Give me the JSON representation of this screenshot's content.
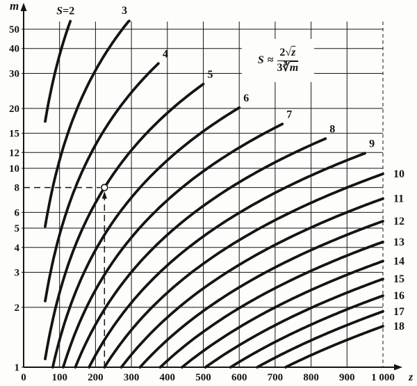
{
  "figure": {
    "background": "#fdfdfb",
    "ink": "#141414"
  },
  "chart_data": {
    "type": "line",
    "title": "",
    "grid": true,
    "x_axis": {
      "label": "z",
      "min": 0,
      "max": 1000,
      "scale": "linear",
      "ticks": [
        {
          "z": 0,
          "label": "0"
        },
        {
          "z": 100,
          "label": "100"
        },
        {
          "z": 200,
          "label": "200"
        },
        {
          "z": 300,
          "label": "300"
        },
        {
          "z": 400,
          "label": "400"
        },
        {
          "z": 500,
          "label": "500"
        },
        {
          "z": 600,
          "label": "600"
        },
        {
          "z": 700,
          "label": "700"
        },
        {
          "z": 800,
          "label": "800"
        },
        {
          "z": 900,
          "label": "900"
        },
        {
          "z": 1000,
          "label": "1 000"
        }
      ]
    },
    "y_axis": {
      "label": "m",
      "min": 1,
      "max": 55,
      "scale": "log",
      "ticks": [
        {
          "m": 50,
          "label": "50"
        },
        {
          "m": 40,
          "label": "40"
        },
        {
          "m": 30,
          "label": "30"
        },
        {
          "m": 20,
          "label": "20"
        },
        {
          "m": 15,
          "label": "15"
        },
        {
          "m": 12,
          "label": "12"
        },
        {
          "m": 10,
          "label": "10"
        },
        {
          "m": 8,
          "label": "8"
        },
        {
          "m": 6,
          "label": "6"
        },
        {
          "m": 5,
          "label": "5"
        },
        {
          "m": 4,
          "label": "4"
        },
        {
          "m": 3,
          "label": "3"
        },
        {
          "m": 2,
          "label": "2"
        },
        {
          "m": 1,
          "label": "1"
        }
      ]
    },
    "formula": {
      "lhs": "S",
      "relation": "≈",
      "numerator_coefficient": "2",
      "numerator_radical": "√",
      "numerator_radicand": "z",
      "denominator_coefficient": "3",
      "denominator_radical": "∛",
      "denominator_radicand": "m"
    },
    "model": "m = 8·z^1.5 / (27·S^3), i.e. S ≈ 2√z / (3·∛m)",
    "series": [
      {
        "s": 2,
        "label": "S=2",
        "z_start": 60,
        "z_end": 130
      },
      {
        "s": 3,
        "label": "3",
        "z_start": 60,
        "z_end": 294
      },
      {
        "s": 4,
        "label": "4",
        "z_start": 60,
        "z_end": 375
      },
      {
        "s": 5,
        "label": "5",
        "z_start": 60,
        "z_end": 500
      },
      {
        "s": 6,
        "label": "6",
        "z_start": 81,
        "z_end": 600
      },
      {
        "s": 7,
        "label": "7",
        "z_start": 110,
        "z_end": 720
      },
      {
        "s": 8,
        "label": "8",
        "z_start": 144,
        "z_end": 840
      },
      {
        "s": 9,
        "label": "9",
        "z_start": 182,
        "z_end": 950
      },
      {
        "s": 10,
        "label": "10",
        "z_start": 225,
        "z_end": 1000
      },
      {
        "s": 11,
        "label": "11",
        "z_start": 272,
        "z_end": 1000
      },
      {
        "s": 12,
        "label": "12",
        "z_start": 324,
        "z_end": 1000
      },
      {
        "s": 13,
        "label": "13",
        "z_start": 380,
        "z_end": 1000
      },
      {
        "s": 14,
        "label": "14",
        "z_start": 441,
        "z_end": 1000
      },
      {
        "s": 15,
        "label": "15",
        "z_start": 506,
        "z_end": 1000
      },
      {
        "s": 16,
        "label": "16",
        "z_start": 576,
        "z_end": 1000
      },
      {
        "s": 17,
        "label": "17",
        "z_start": 650,
        "z_end": 1000
      },
      {
        "s": 18,
        "label": "18",
        "z_start": 729,
        "z_end": 1000
      }
    ],
    "annotation": {
      "z": 225,
      "m": 8,
      "on_curve_s": 5,
      "marker": "circle",
      "style": "dashed vertical guide with up arrow from z-axis to circled point, dashed horizontal guide from point to m-axis"
    }
  }
}
